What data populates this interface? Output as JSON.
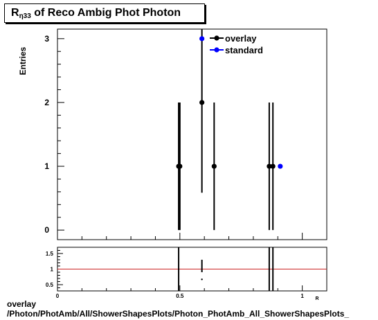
{
  "title": {
    "text": "R",
    "subscript": "η33",
    "suffix": " of Reco Ambig Phot Photon"
  },
  "footer": {
    "line1": "overlay",
    "line2": "/Photon/PhotAmb/All/ShowerShapesPlots/Photon_PhotAmb_All_ShowerShapesPlots_"
  },
  "chart_data": [
    {
      "type": "scatter",
      "ylabel": "Entries",
      "xlim": [
        0,
        1.1
      ],
      "ylim": [
        -0.15,
        3.15
      ],
      "y_ticks": [
        0,
        1,
        2,
        3
      ],
      "legend": {
        "placement": "top-right",
        "entries": [
          {
            "name": "overlay",
            "color": "#000000"
          },
          {
            "name": "standard",
            "color": "#0000ff"
          }
        ]
      },
      "series": [
        {
          "name": "overlay",
          "color": "#000000",
          "points": [
            {
              "x": 0.495,
              "y": 1,
              "err": 1
            },
            {
              "x": 0.5,
              "y": 1,
              "err": 1
            },
            {
              "x": 0.59,
              "y": 2,
              "err": 1.414
            },
            {
              "x": 0.64,
              "y": 1,
              "err": 1
            },
            {
              "x": 0.865,
              "y": 1,
              "err": 1
            },
            {
              "x": 0.88,
              "y": 1,
              "err": 1
            }
          ]
        },
        {
          "name": "standard",
          "color": "#0000ff",
          "points": [
            {
              "x": 0.59,
              "y": 3,
              "err": 0
            },
            {
              "x": 0.91,
              "y": 1,
              "err": 0
            }
          ]
        }
      ]
    },
    {
      "type": "line",
      "xlim": [
        0,
        1.1
      ],
      "ylim": [
        0.3,
        1.7
      ],
      "y_ticks": [
        0.5,
        1,
        1.5
      ],
      "y_tick_labels": [
        "0.5",
        "1",
        "1.5"
      ],
      "x_ticks": [
        0,
        0.5,
        1
      ],
      "x_tick_labels": [
        "0",
        "0.5",
        "1"
      ],
      "x_axis_label": "R",
      "reference_line": {
        "y": 1,
        "color": "#cc2222"
      },
      "ratio_bars": [
        {
          "x": 0.495,
          "low": 0.3,
          "high": 1.7
        },
        {
          "x": 0.59,
          "low": 0.9,
          "high": 1.3
        },
        {
          "x": 0.865,
          "low": 0.3,
          "high": 1.7
        },
        {
          "x": 0.88,
          "low": 0.3,
          "high": 1.7
        }
      ],
      "ratio_points": [
        {
          "x": 0.59,
          "y": 0.67
        }
      ]
    }
  ]
}
